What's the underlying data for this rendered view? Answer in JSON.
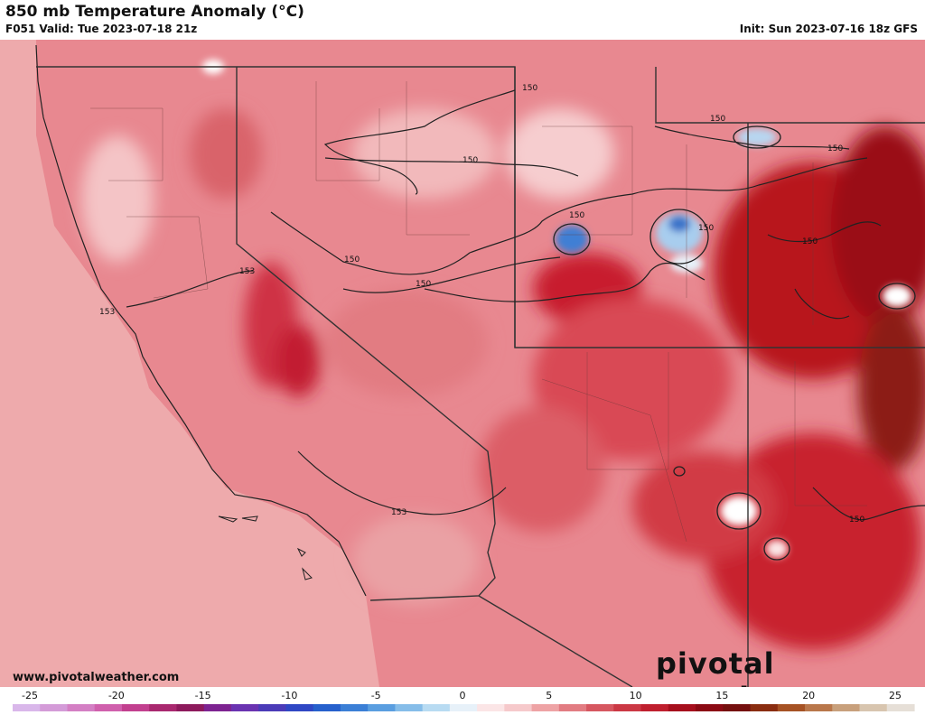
{
  "header": {
    "title": "850 mb Temperature Anomaly (°C)",
    "valid": "F051 Valid: Tue 2023-07-18 21z",
    "init": "Init: Sun 2023-07-16 18z GFS"
  },
  "footer": {
    "website": "www.pivotalweather.com",
    "brand": "pivotal weather"
  },
  "contour_labels": [
    "150",
    "150",
    "150",
    "150",
    "150",
    "150",
    "150",
    "150",
    "150",
    "153",
    "153",
    "153"
  ],
  "colorbar": {
    "ticks": [
      "-25",
      "-20",
      "-15",
      "-10",
      "-5",
      "0",
      "5",
      "10",
      "15",
      "20",
      "25"
    ],
    "colors": [
      "#d9b7ea",
      "#d49bd8",
      "#d47fc4",
      "#d060ad",
      "#c2408f",
      "#a9286f",
      "#8d1a5c",
      "#7d2391",
      "#6a33b1",
      "#4b3bb8",
      "#2f47c4",
      "#2660cc",
      "#3b7fd6",
      "#5a9ee0",
      "#86bde9",
      "#b8dbf2",
      "#e7f1f9",
      "#fbe5e6",
      "#f6c9cb",
      "#eea3a5",
      "#e27c82",
      "#d65760",
      "#cb3844",
      "#bf1f2e",
      "#a60f1d",
      "#8b0a14",
      "#75100f",
      "#8a2d10",
      "#a65224",
      "#b9774b",
      "#c8a07c",
      "#d8c5af",
      "#e6dfd7"
    ]
  }
}
